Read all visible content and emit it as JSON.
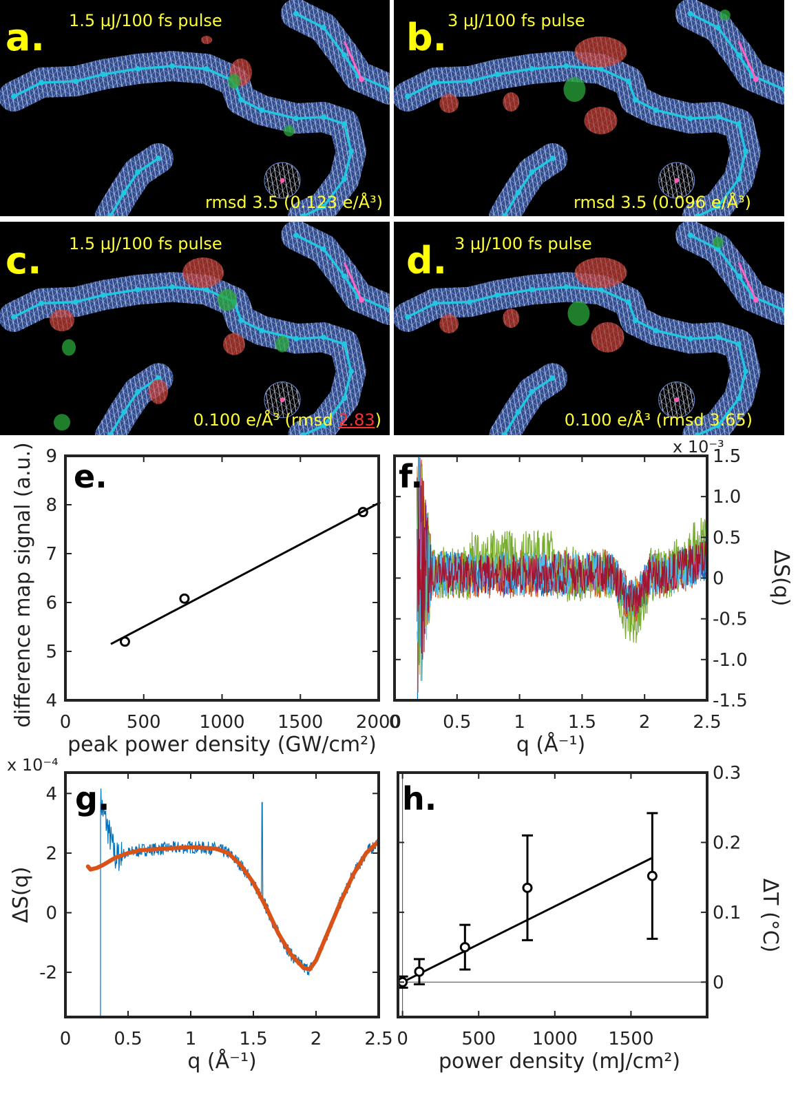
{
  "maps": [
    {
      "letter": "a.",
      "pulse": "1.5 µJ/100 fs pulse",
      "caption_pre": "rmsd 3.5 (0.123 e/Å³)",
      "caption_red": "",
      "caption_post": ""
    },
    {
      "letter": "b.",
      "pulse": "3 µJ/100 fs pulse",
      "caption_pre": "rmsd 3.5 (0.096 e/Å³)",
      "caption_red": "",
      "caption_post": ""
    },
    {
      "letter": "c.",
      "pulse": "1.5 µJ/100 fs pulse",
      "caption_pre": "0.100 e/Å³ (rmsd ",
      "caption_red": "2.83",
      "caption_post": ")"
    },
    {
      "letter": "d.",
      "pulse": "3 µJ/100 fs pulse",
      "caption_pre": "0.100 e/Å³ (rmsd 3.65)",
      "caption_red": "",
      "caption_post": ""
    }
  ],
  "chart_data": [
    {
      "id": "e",
      "letter": "e.",
      "type": "scatter",
      "xlabel": "peak power density (GW/cm²)",
      "ylabel": "difference map signal (a.u.)",
      "xlim": [
        0,
        2000
      ],
      "ylim": [
        4,
        9
      ],
      "xticks": [
        0,
        500,
        1000,
        1500,
        2000
      ],
      "yticks": [
        4,
        5,
        6,
        7,
        8,
        9
      ],
      "points": [
        {
          "x": 380,
          "y": 5.2
        },
        {
          "x": 760,
          "y": 6.08
        },
        {
          "x": 1900,
          "y": 7.85
        }
      ],
      "fit": {
        "x": [
          290,
          2010
        ],
        "y": [
          5.15,
          8.05
        ]
      }
    },
    {
      "id": "f",
      "letter": "f.",
      "type": "line",
      "xlabel": "q (Å⁻¹)",
      "ylabel": "ΔS(q)",
      "scale_label": "x 10⁻³",
      "xlim": [
        0,
        2.5
      ],
      "ylim": [
        -1.5,
        1.5
      ],
      "xticks": [
        0,
        0.5,
        1,
        1.5,
        2,
        2.5
      ],
      "yticks": [
        -1.5,
        -1.0,
        -0.5,
        0,
        0.5,
        1.0,
        1.5
      ],
      "ytick_labels": [
        "-1.5",
        "-1.0",
        "-0.5",
        "0",
        "0.5",
        "1.0",
        "1.5"
      ],
      "series_colors": [
        "#0072bd",
        "#d95319",
        "#edb120",
        "#7e2f8e",
        "#77ac30",
        "#4dbeee",
        "#a2142f"
      ]
    },
    {
      "id": "g",
      "letter": "g.",
      "type": "line",
      "xlabel": "q (Å⁻¹)",
      "ylabel": "ΔS(q)",
      "scale_label": "x 10⁻⁴",
      "xlim": [
        0,
        2.5
      ],
      "ylim": [
        -3.5,
        4.7
      ],
      "xticks": [
        0,
        0.5,
        1,
        1.5,
        2,
        2.5
      ],
      "yticks": [
        -2,
        0,
        2,
        4
      ],
      "series": [
        {
          "color": "#0072bd",
          "kind": "data"
        },
        {
          "color": "#d95319",
          "kind": "fit",
          "x": [
            0.18,
            0.2,
            0.25,
            0.3,
            0.4,
            0.5,
            0.6,
            0.8,
            1.0,
            1.2,
            1.3,
            1.4,
            1.5,
            1.6,
            1.7,
            1.8,
            1.9,
            1.95,
            2.0,
            2.1,
            2.2,
            2.3,
            2.4,
            2.5
          ],
          "y": [
            1.55,
            1.45,
            1.5,
            1.6,
            1.85,
            2.0,
            2.1,
            2.15,
            2.2,
            2.15,
            2.0,
            1.6,
            1.0,
            0.2,
            -0.7,
            -1.4,
            -1.85,
            -1.9,
            -1.6,
            -0.6,
            0.4,
            1.3,
            2.0,
            2.4
          ]
        }
      ]
    },
    {
      "id": "h",
      "letter": "h.",
      "type": "scatter",
      "xlabel": "power density (mJ/cm²)",
      "ylabel": "ΔT (°C)",
      "xlim": [
        -30,
        2000
      ],
      "ylim": [
        -0.05,
        0.3
      ],
      "xticks": [
        0,
        500,
        1000,
        1500
      ],
      "yticks": [
        0,
        0.1,
        0.2,
        0.3
      ],
      "ytick_labels": [
        "0",
        "0.1",
        "0.2",
        "0.3"
      ],
      "points": [
        {
          "x": 0,
          "y": 0.0,
          "err": 0.008
        },
        {
          "x": 110,
          "y": 0.015,
          "err": 0.018
        },
        {
          "x": 410,
          "y": 0.05,
          "err": 0.032
        },
        {
          "x": 820,
          "y": 0.135,
          "err": 0.075
        },
        {
          "x": 1640,
          "y": 0.152,
          "err": 0.09
        }
      ],
      "fit": {
        "x": [
          0,
          1640
        ],
        "y": [
          0.0,
          0.178
        ]
      }
    }
  ]
}
